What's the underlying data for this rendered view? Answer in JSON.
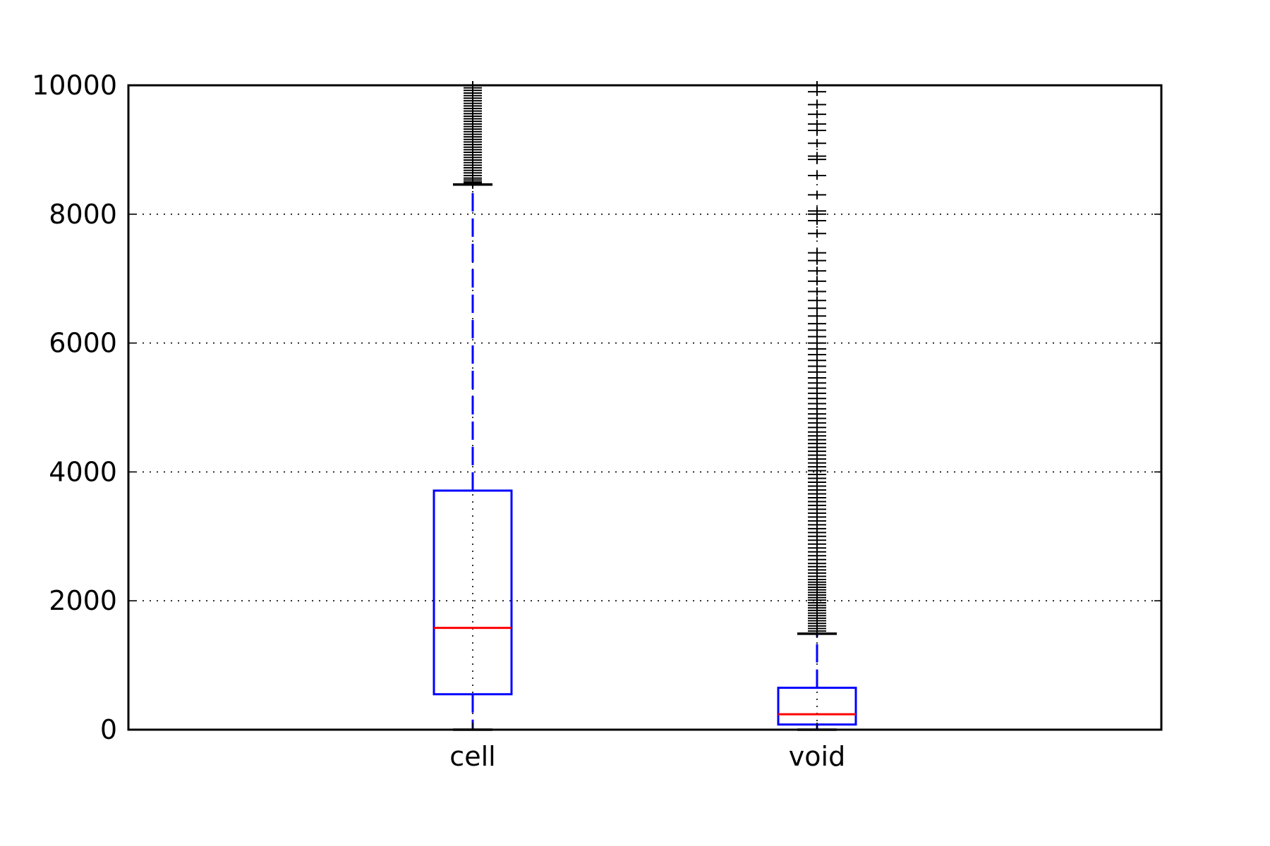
{
  "chart_data": {
    "type": "box",
    "title": "",
    "xlabel": "",
    "ylabel": "",
    "ylim": [
      0,
      10000
    ],
    "yticks": [
      0,
      2000,
      4000,
      6000,
      8000,
      10000
    ],
    "grid": true,
    "categories": [
      "cell",
      "void"
    ],
    "boxes": [
      {
        "label": "cell",
        "whisker_low": 0,
        "q1": 550,
        "median": 1580,
        "q3": 3710,
        "whisker_high": 8460,
        "outliers": [
          8460,
          8480,
          8500,
          8530,
          8560,
          8600,
          8640,
          8680,
          8720,
          8760,
          8800,
          8840,
          8880,
          8920,
          8960,
          9000,
          9040,
          9080,
          9120,
          9160,
          9200,
          9240,
          9280,
          9320,
          9360,
          9400,
          9440,
          9480,
          9520,
          9560,
          9600,
          9640,
          9680,
          9720,
          9760,
          9800,
          9840,
          9880,
          9920,
          9960,
          10000
        ]
      },
      {
        "label": "void",
        "whisker_low": 0,
        "q1": 80,
        "median": 240,
        "q3": 650,
        "whisker_high": 1490,
        "outliers": [
          1490,
          1530,
          1570,
          1610,
          1650,
          1690,
          1730,
          1770,
          1810,
          1850,
          1890,
          1930,
          1970,
          2010,
          2050,
          2090,
          2130,
          2170,
          2210,
          2250,
          2290,
          2330,
          2380,
          2430,
          2480,
          2530,
          2580,
          2640,
          2700,
          2760,
          2820,
          2880,
          2940,
          3000,
          3060,
          3120,
          3180,
          3240,
          3300,
          3360,
          3420,
          3480,
          3540,
          3600,
          3660,
          3720,
          3780,
          3840,
          3900,
          3960,
          4020,
          4080,
          4140,
          4200,
          4260,
          4320,
          4380,
          4440,
          4500,
          4560,
          4620,
          4690,
          4760,
          4830,
          4900,
          4980,
          5060,
          5140,
          5220,
          5300,
          5380,
          5460,
          5550,
          5640,
          5730,
          5820,
          5910,
          6000,
          6100,
          6200,
          6300,
          6420,
          6540,
          6660,
          6800,
          6960,
          7120,
          7280,
          7400,
          7700,
          7900,
          8000,
          8050,
          8300,
          8600,
          8850,
          8900,
          9100,
          9300,
          9400,
          9550,
          9700,
          9900,
          10000
        ]
      }
    ],
    "colors": {
      "box": "#0000ff",
      "median": "#ff0000",
      "whisker": "#0000ff",
      "flier": "#000000",
      "cap": "#000000",
      "grid": "#000000",
      "axes": "#000000"
    }
  }
}
